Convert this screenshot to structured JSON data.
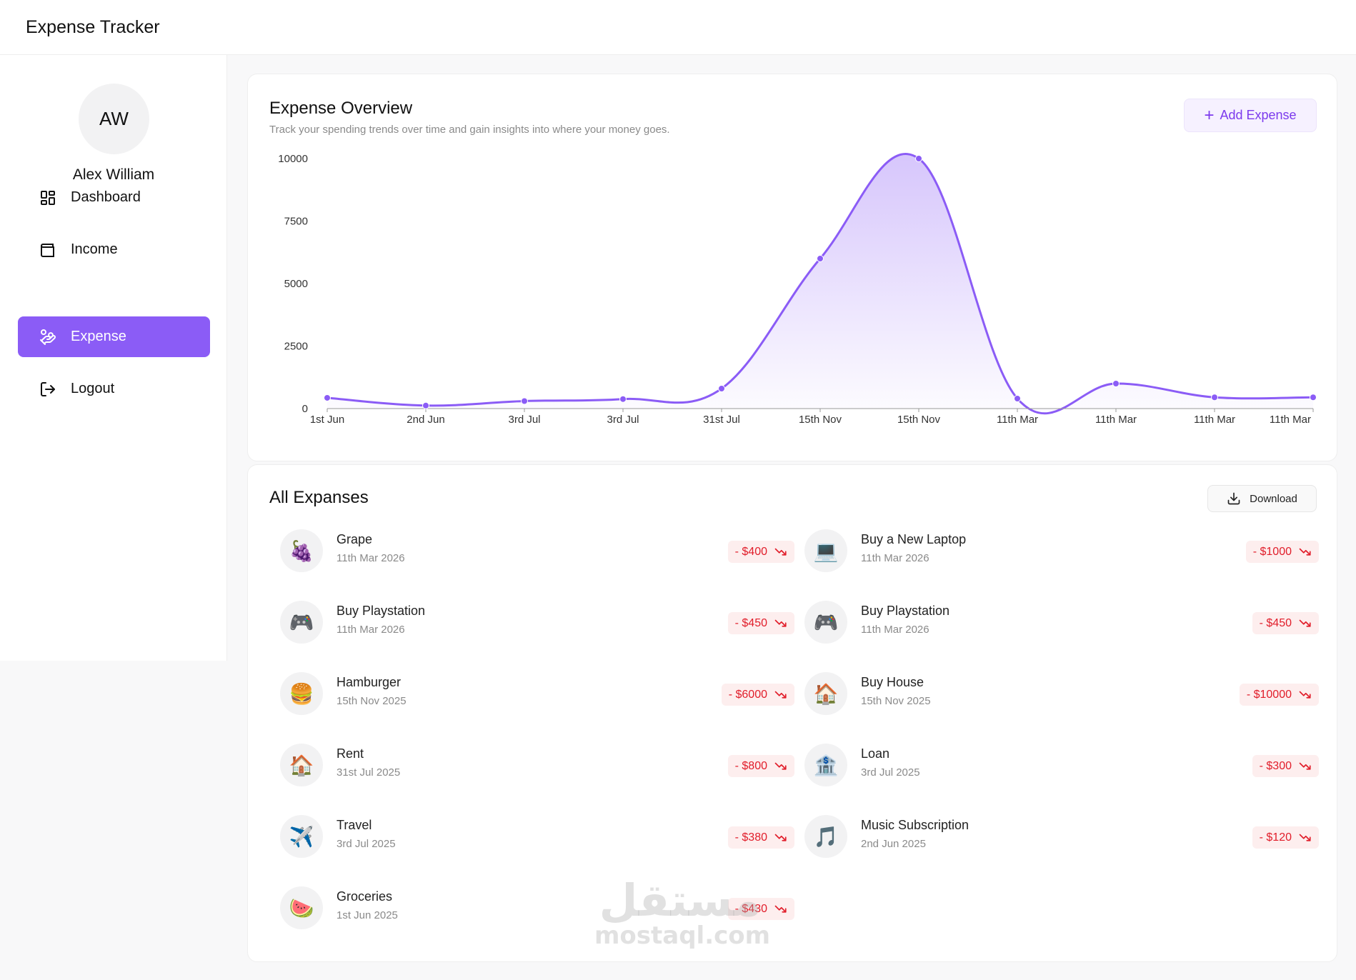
{
  "app": {
    "title": "Expense Tracker"
  },
  "user": {
    "initials": "AW",
    "name": "Alex William"
  },
  "nav": [
    {
      "label": "Dashboard",
      "icon": "dashboard-icon",
      "active": false
    },
    {
      "label": "Income",
      "icon": "wallet-icon",
      "active": false
    },
    {
      "label": "Expense",
      "icon": "hand-coins-icon",
      "active": true
    },
    {
      "label": "Logout",
      "icon": "logout-icon",
      "active": false
    }
  ],
  "overview": {
    "title": "Expense Overview",
    "subtitle": "Track your spending trends over time and gain insights into where your money goes.",
    "add_label": "Add Expense"
  },
  "chart_data": {
    "type": "area",
    "categories": [
      "1st Jun",
      "2nd Jun",
      "3rd Jul",
      "3rd Jul",
      "31st Jul",
      "15th Nov",
      "15th Nov",
      "11th Mar",
      "11th Mar",
      "11th Mar",
      "11th Mar"
    ],
    "values": [
      430,
      120,
      300,
      380,
      800,
      6000,
      10000,
      400,
      1000,
      450,
      450
    ],
    "yticks": [
      0,
      2500,
      5000,
      7500,
      10000
    ],
    "ylim": [
      0,
      10000
    ],
    "grid": false,
    "legend": "none",
    "color": "#8b5cf6"
  },
  "expenses": {
    "title": "All Expanses",
    "download_label": "Download",
    "items": [
      {
        "name": "Grape",
        "date": "11th Mar 2026",
        "amount": "- $400",
        "emoji": "🍇"
      },
      {
        "name": "Buy a New Laptop",
        "date": "11th Mar 2026",
        "amount": "- $1000",
        "emoji": "💻"
      },
      {
        "name": "Buy Playstation",
        "date": "11th Mar 2026",
        "amount": "- $450",
        "emoji": "🎮"
      },
      {
        "name": "Buy Playstation",
        "date": "11th Mar 2026",
        "amount": "- $450",
        "emoji": "🎮"
      },
      {
        "name": "Hamburger",
        "date": "15th Nov 2025",
        "amount": "- $6000",
        "emoji": "🍔"
      },
      {
        "name": "Buy House",
        "date": "15th Nov 2025",
        "amount": "- $10000",
        "emoji": "🏠"
      },
      {
        "name": "Rent",
        "date": "31st Jul 2025",
        "amount": "- $800",
        "emoji": "🏠"
      },
      {
        "name": "Loan",
        "date": "3rd Jul 2025",
        "amount": "- $300",
        "emoji": "🏦"
      },
      {
        "name": "Travel",
        "date": "3rd Jul 2025",
        "amount": "- $380",
        "emoji": "✈️"
      },
      {
        "name": "Music Subscription",
        "date": "2nd Jun 2025",
        "amount": "- $120",
        "emoji": "🎵"
      },
      {
        "name": "Groceries",
        "date": "1st Jun 2025",
        "amount": "- $430",
        "emoji": "🍉"
      }
    ]
  },
  "watermark": {
    "arabic": "مستقل",
    "latin": "mostaql.com"
  }
}
